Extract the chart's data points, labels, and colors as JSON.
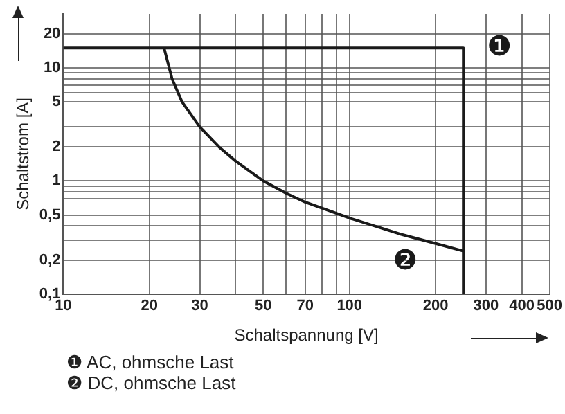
{
  "chart_data": {
    "type": "line",
    "xlabel": "Schaltspannung [V]",
    "ylabel": "Schaltstrom [A]",
    "log": "xy",
    "grid": true,
    "marker": "none",
    "line_style": "solid",
    "xlim": [
      10,
      500
    ],
    "ylim": [
      0.1,
      30
    ],
    "xticks": [
      10,
      20,
      30,
      {
        "value": 40,
        "label": null
      },
      50,
      {
        "value": 60,
        "label": null
      },
      70,
      {
        "value": 80,
        "label": null
      },
      {
        "value": 90,
        "label": null
      },
      100,
      200,
      300,
      400,
      500
    ],
    "yticks": [
      {
        "value": 0.1,
        "label": "0,1"
      },
      {
        "value": 0.2,
        "label": "0,2"
      },
      {
        "value": 0.3,
        "label": null
      },
      {
        "value": 0.4,
        "label": null
      },
      {
        "value": 0.5,
        "label": "0,5"
      },
      {
        "value": 0.7,
        "label": null
      },
      {
        "value": 0.8,
        "label": null
      },
      {
        "value": 0.9,
        "label": null
      },
      1,
      2,
      {
        "value": 3,
        "label": null
      },
      5,
      {
        "value": 6,
        "label": null
      },
      {
        "value": 7,
        "label": null
      },
      {
        "value": 8,
        "label": null
      },
      {
        "value": 9,
        "label": null
      },
      10,
      20
    ],
    "series": [
      {
        "color": "#1a1a1a",
        "x": [
          10,
          250,
          250
        ],
        "values": [
          15,
          15,
          0.1
        ]
      },
      {
        "color": "#1a1a1a",
        "x": [
          22.5,
          24,
          26,
          30,
          35,
          40,
          50,
          60,
          70,
          100,
          150,
          200,
          250
        ],
        "values": [
          15,
          8,
          5,
          3,
          2,
          1.5,
          1,
          0.78,
          0.65,
          0.47,
          0.34,
          0.28,
          0.24
        ]
      }
    ],
    "annotations": [
      {
        "text": "❶",
        "x": 250,
        "y": 15
      },
      {
        "text": "❷",
        "x": 250,
        "y": 0.24
      },
      "❶ AC, ohmsche Last",
      "❷ DC, ohmsche Last"
    ]
  }
}
